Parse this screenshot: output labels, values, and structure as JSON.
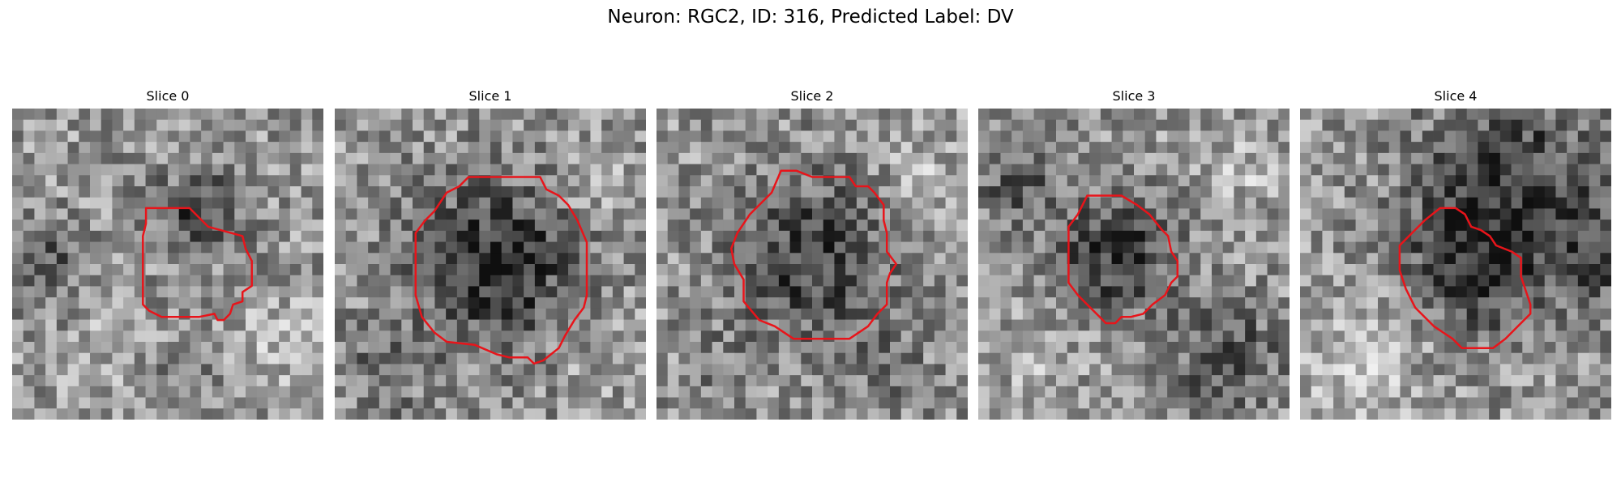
{
  "figure": {
    "title": "Neuron: RGC2, ID: 316, Predicted Label: DV"
  },
  "colors": {
    "contour": "#e8141a",
    "background": "#ffffff"
  },
  "panels": [
    {
      "title": "Slice 0",
      "seed": 11,
      "blobs": [
        [
          0.6,
          0.34,
          0.13,
          -95
        ],
        [
          0.1,
          0.5,
          0.14,
          -60
        ],
        [
          0.3,
          0.8,
          0.14,
          25
        ],
        [
          0.85,
          0.75,
          0.16,
          25
        ],
        [
          0.55,
          0.85,
          0.12,
          -30
        ]
      ],
      "contour": [
        [
          0.43,
          0.32
        ],
        [
          0.5,
          0.32
        ],
        [
          0.57,
          0.32
        ],
        [
          0.63,
          0.38
        ],
        [
          0.74,
          0.41
        ],
        [
          0.75,
          0.45
        ],
        [
          0.77,
          0.49
        ],
        [
          0.77,
          0.57
        ],
        [
          0.74,
          0.59
        ],
        [
          0.74,
          0.62
        ],
        [
          0.71,
          0.63
        ],
        [
          0.7,
          0.66
        ],
        [
          0.68,
          0.68
        ],
        [
          0.66,
          0.68
        ],
        [
          0.65,
          0.66
        ],
        [
          0.6,
          0.67
        ],
        [
          0.53,
          0.67
        ],
        [
          0.48,
          0.67
        ],
        [
          0.44,
          0.65
        ],
        [
          0.42,
          0.63
        ],
        [
          0.42,
          0.55
        ],
        [
          0.42,
          0.48
        ],
        [
          0.42,
          0.41
        ],
        [
          0.43,
          0.37
        ]
      ]
    },
    {
      "title": "Slice 1",
      "seed": 23,
      "blobs": [
        [
          0.52,
          0.5,
          0.26,
          -110
        ],
        [
          0.82,
          0.25,
          0.1,
          40
        ],
        [
          0.15,
          0.85,
          0.15,
          -40
        ],
        [
          0.85,
          0.8,
          0.12,
          20
        ]
      ],
      "contour": [
        [
          0.43,
          0.22
        ],
        [
          0.57,
          0.22
        ],
        [
          0.66,
          0.22
        ],
        [
          0.68,
          0.26
        ],
        [
          0.72,
          0.28
        ],
        [
          0.75,
          0.31
        ],
        [
          0.78,
          0.36
        ],
        [
          0.81,
          0.43
        ],
        [
          0.81,
          0.52
        ],
        [
          0.81,
          0.6
        ],
        [
          0.8,
          0.64
        ],
        [
          0.77,
          0.68
        ],
        [
          0.74,
          0.73
        ],
        [
          0.72,
          0.77
        ],
        [
          0.67,
          0.81
        ],
        [
          0.64,
          0.82
        ],
        [
          0.62,
          0.8
        ],
        [
          0.56,
          0.8
        ],
        [
          0.52,
          0.79
        ],
        [
          0.45,
          0.76
        ],
        [
          0.36,
          0.75
        ],
        [
          0.32,
          0.72
        ],
        [
          0.28,
          0.67
        ],
        [
          0.26,
          0.6
        ],
        [
          0.26,
          0.5
        ],
        [
          0.26,
          0.4
        ],
        [
          0.29,
          0.36
        ],
        [
          0.32,
          0.33
        ],
        [
          0.36,
          0.27
        ],
        [
          0.4,
          0.25
        ]
      ]
    },
    {
      "title": "Slice 2",
      "seed": 37,
      "blobs": [
        [
          0.5,
          0.48,
          0.26,
          -90
        ],
        [
          0.85,
          0.2,
          0.1,
          40
        ],
        [
          0.2,
          0.85,
          0.12,
          -30
        ],
        [
          0.75,
          0.85,
          0.14,
          -35
        ]
      ],
      "contour": [
        [
          0.4,
          0.2
        ],
        [
          0.45,
          0.2
        ],
        [
          0.5,
          0.22
        ],
        [
          0.55,
          0.22
        ],
        [
          0.62,
          0.22
        ],
        [
          0.64,
          0.25
        ],
        [
          0.68,
          0.25
        ],
        [
          0.7,
          0.27
        ],
        [
          0.73,
          0.31
        ],
        [
          0.73,
          0.36
        ],
        [
          0.74,
          0.4
        ],
        [
          0.74,
          0.46
        ],
        [
          0.77,
          0.5
        ],
        [
          0.75,
          0.53
        ],
        [
          0.74,
          0.56
        ],
        [
          0.74,
          0.63
        ],
        [
          0.71,
          0.66
        ],
        [
          0.68,
          0.7
        ],
        [
          0.62,
          0.74
        ],
        [
          0.5,
          0.74
        ],
        [
          0.44,
          0.74
        ],
        [
          0.38,
          0.7
        ],
        [
          0.33,
          0.68
        ],
        [
          0.28,
          0.62
        ],
        [
          0.28,
          0.55
        ],
        [
          0.25,
          0.5
        ],
        [
          0.24,
          0.45
        ],
        [
          0.26,
          0.4
        ],
        [
          0.3,
          0.34
        ],
        [
          0.34,
          0.3
        ],
        [
          0.37,
          0.27
        ]
      ]
    },
    {
      "title": "Slice 3",
      "seed": 53,
      "blobs": [
        [
          0.44,
          0.47,
          0.18,
          -100
        ],
        [
          0.12,
          0.25,
          0.14,
          -60
        ],
        [
          0.8,
          0.8,
          0.18,
          -70
        ],
        [
          0.85,
          0.2,
          0.12,
          30
        ],
        [
          0.2,
          0.8,
          0.13,
          30
        ]
      ],
      "contour": [
        [
          0.35,
          0.28
        ],
        [
          0.41,
          0.28
        ],
        [
          0.46,
          0.28
        ],
        [
          0.51,
          0.31
        ],
        [
          0.55,
          0.34
        ],
        [
          0.59,
          0.39
        ],
        [
          0.61,
          0.41
        ],
        [
          0.62,
          0.46
        ],
        [
          0.64,
          0.49
        ],
        [
          0.64,
          0.54
        ],
        [
          0.62,
          0.56
        ],
        [
          0.6,
          0.6
        ],
        [
          0.56,
          0.63
        ],
        [
          0.53,
          0.66
        ],
        [
          0.49,
          0.67
        ],
        [
          0.46,
          0.67
        ],
        [
          0.44,
          0.69
        ],
        [
          0.41,
          0.69
        ],
        [
          0.39,
          0.67
        ],
        [
          0.36,
          0.64
        ],
        [
          0.32,
          0.6
        ],
        [
          0.29,
          0.56
        ],
        [
          0.29,
          0.5
        ],
        [
          0.29,
          0.44
        ],
        [
          0.29,
          0.38
        ],
        [
          0.32,
          0.34
        ]
      ]
    },
    {
      "title": "Slice 4",
      "seed": 71,
      "blobs": [
        [
          0.55,
          0.5,
          0.22,
          -90
        ],
        [
          0.7,
          0.2,
          0.3,
          -80
        ],
        [
          0.95,
          0.5,
          0.18,
          -60
        ],
        [
          0.18,
          0.8,
          0.22,
          40
        ]
      ],
      "contour": [
        [
          0.45,
          0.32
        ],
        [
          0.5,
          0.32
        ],
        [
          0.53,
          0.34
        ],
        [
          0.55,
          0.38
        ],
        [
          0.58,
          0.39
        ],
        [
          0.61,
          0.41
        ],
        [
          0.63,
          0.44
        ],
        [
          0.68,
          0.46
        ],
        [
          0.71,
          0.48
        ],
        [
          0.71,
          0.54
        ],
        [
          0.72,
          0.57
        ],
        [
          0.74,
          0.63
        ],
        [
          0.74,
          0.66
        ],
        [
          0.7,
          0.7
        ],
        [
          0.66,
          0.74
        ],
        [
          0.62,
          0.77
        ],
        [
          0.58,
          0.77
        ],
        [
          0.52,
          0.77
        ],
        [
          0.49,
          0.74
        ],
        [
          0.46,
          0.72
        ],
        [
          0.43,
          0.7
        ],
        [
          0.37,
          0.64
        ],
        [
          0.34,
          0.58
        ],
        [
          0.32,
          0.52
        ],
        [
          0.32,
          0.44
        ],
        [
          0.36,
          0.4
        ],
        [
          0.4,
          0.36
        ]
      ]
    }
  ]
}
